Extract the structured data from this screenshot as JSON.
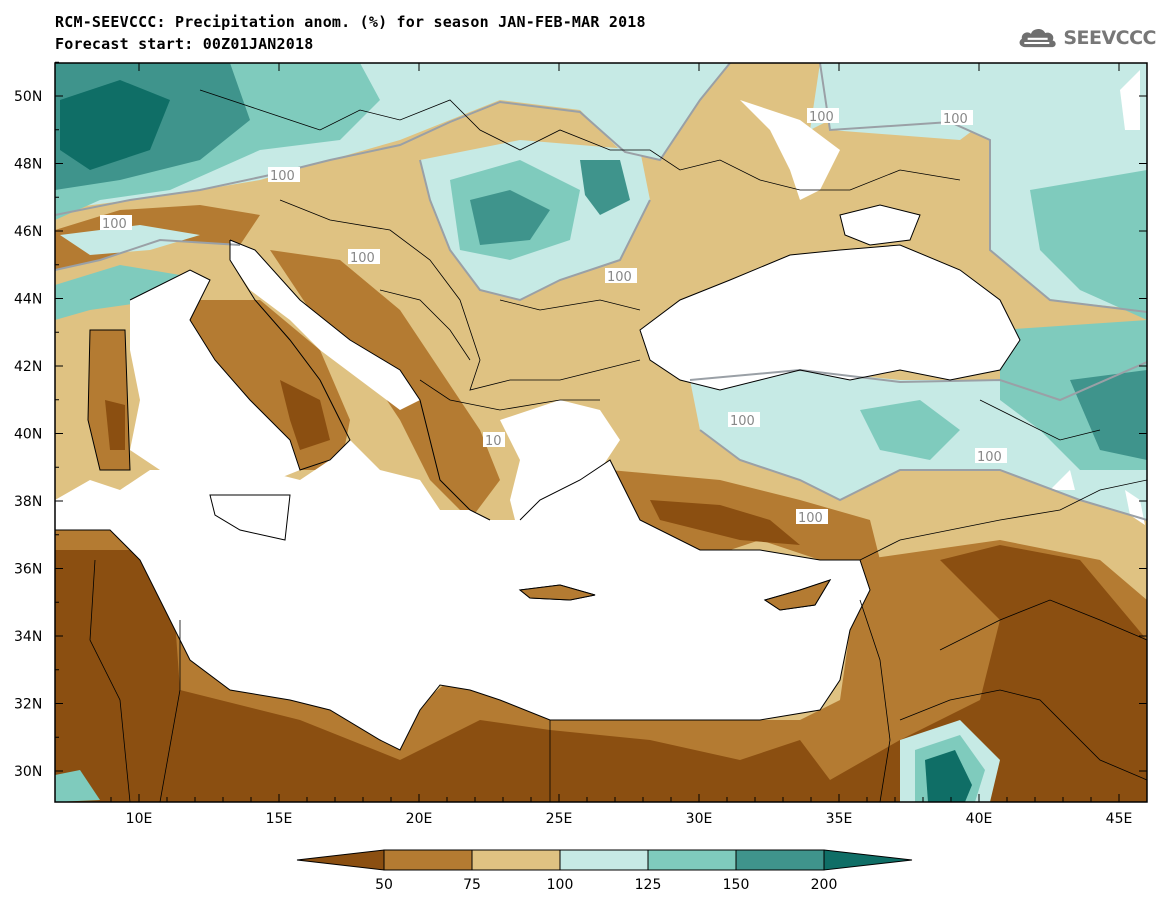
{
  "header": {
    "title": "RCM-SEEVCCC: Precipitation anom. (%) for season JAN-FEB-MAR 2018",
    "subtitle": "Forecast start: 00Z01JAN2018",
    "logo_text": "SEEVCCC",
    "logo_icon": "cloud-icon"
  },
  "map": {
    "lat_labels": [
      "50N",
      "48N",
      "46N",
      "44N",
      "42N",
      "40N",
      "38N",
      "36N",
      "34N",
      "32N",
      "30N"
    ],
    "lon_labels": [
      "10E",
      "15E",
      "20E",
      "25E",
      "30E",
      "35E",
      "40E",
      "45E"
    ],
    "contour_labels": [
      "100",
      "100",
      "100",
      "100",
      "100",
      "100",
      "100",
      "100",
      "100",
      "10"
    ],
    "colors": {
      "frame": "#000000",
      "sea": "#ffffff",
      "contour_line": "#9aa0a6"
    }
  },
  "colorbar": {
    "labels": [
      "50",
      "75",
      "100",
      "125",
      "150",
      "200"
    ],
    "colors": [
      "#8b4f11",
      "#b47b32",
      "#dfc282",
      "#c6eae5",
      "#7fcbbd",
      "#3f948c",
      "#0f6e66"
    ]
  }
}
